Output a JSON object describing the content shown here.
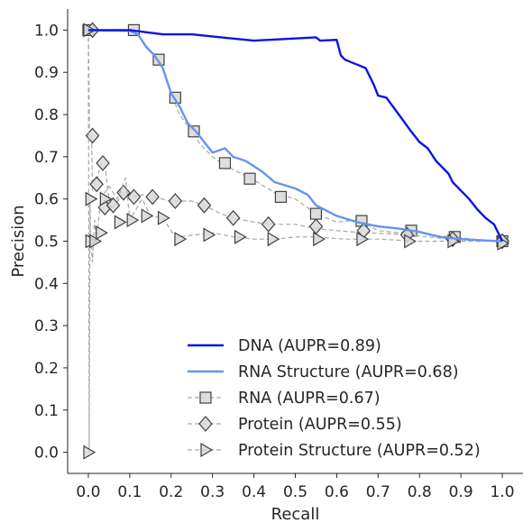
{
  "chart_data": {
    "type": "line",
    "title": "",
    "xlabel": "Recall",
    "ylabel": "Precision",
    "xlim": [
      -0.05,
      1.05
    ],
    "ylim": [
      -0.05,
      1.05
    ],
    "x_ticks": [
      "0.0",
      "0.1",
      "0.2",
      "0.3",
      "0.4",
      "0.5",
      "0.6",
      "0.7",
      "0.8",
      "0.9",
      "1.0"
    ],
    "y_ticks": [
      "0.0",
      "0.1",
      "0.2",
      "0.3",
      "0.4",
      "0.5",
      "0.6",
      "0.7",
      "0.8",
      "0.9",
      "1.0"
    ],
    "grid": false,
    "legend_position": "lower-right",
    "series": [
      {
        "name": "DNA (AUPR=0.89)",
        "color": "#0a14e6",
        "style": "solid",
        "marker": "none",
        "points": [
          [
            0.0,
            1.0
          ],
          [
            0.1,
            1.0
          ],
          [
            0.18,
            0.99
          ],
          [
            0.25,
            0.99
          ],
          [
            0.4,
            0.975
          ],
          [
            0.55,
            0.983
          ],
          [
            0.56,
            0.975
          ],
          [
            0.6,
            0.977
          ],
          [
            0.61,
            0.94
          ],
          [
            0.62,
            0.93
          ],
          [
            0.65,
            0.918
          ],
          [
            0.67,
            0.91
          ],
          [
            0.68,
            0.89
          ],
          [
            0.69,
            0.87
          ],
          [
            0.7,
            0.845
          ],
          [
            0.72,
            0.84
          ],
          [
            0.75,
            0.8
          ],
          [
            0.78,
            0.76
          ],
          [
            0.8,
            0.735
          ],
          [
            0.82,
            0.72
          ],
          [
            0.84,
            0.69
          ],
          [
            0.87,
            0.66
          ],
          [
            0.88,
            0.64
          ],
          [
            0.9,
            0.62
          ],
          [
            0.92,
            0.6
          ],
          [
            0.94,
            0.575
          ],
          [
            0.96,
            0.555
          ],
          [
            0.98,
            0.54
          ],
          [
            0.99,
            0.52
          ],
          [
            1.0,
            0.5
          ]
        ]
      },
      {
        "name": "RNA Structure (AUPR=0.68)",
        "color": "#6495ed",
        "style": "solid",
        "marker": "none",
        "points": [
          [
            0.0,
            1.0
          ],
          [
            0.1,
            0.998
          ],
          [
            0.12,
            0.99
          ],
          [
            0.14,
            0.96
          ],
          [
            0.16,
            0.94
          ],
          [
            0.18,
            0.91
          ],
          [
            0.19,
            0.88
          ],
          [
            0.2,
            0.85
          ],
          [
            0.22,
            0.82
          ],
          [
            0.24,
            0.78
          ],
          [
            0.26,
            0.76
          ],
          [
            0.28,
            0.735
          ],
          [
            0.3,
            0.71
          ],
          [
            0.33,
            0.72
          ],
          [
            0.35,
            0.7
          ],
          [
            0.38,
            0.69
          ],
          [
            0.42,
            0.665
          ],
          [
            0.45,
            0.64
          ],
          [
            0.5,
            0.625
          ],
          [
            0.53,
            0.61
          ],
          [
            0.55,
            0.585
          ],
          [
            0.6,
            0.56
          ],
          [
            0.65,
            0.545
          ],
          [
            0.7,
            0.535
          ],
          [
            0.75,
            0.53
          ],
          [
            0.8,
            0.522
          ],
          [
            0.85,
            0.51
          ],
          [
            0.9,
            0.505
          ],
          [
            0.95,
            0.502
          ],
          [
            1.0,
            0.5
          ]
        ]
      },
      {
        "name": "RNA (AUPR=0.67)",
        "color": "#a6a6a6",
        "style": "dashed",
        "marker": "square",
        "points": [
          [
            0.0,
            1.0
          ],
          [
            0.1,
            1.0
          ],
          [
            0.12,
            0.99
          ],
          [
            0.15,
            0.95
          ],
          [
            0.17,
            0.93
          ],
          [
            0.19,
            0.88
          ],
          [
            0.2,
            0.85
          ],
          [
            0.22,
            0.8
          ],
          [
            0.25,
            0.76
          ],
          [
            0.27,
            0.73
          ],
          [
            0.3,
            0.7
          ],
          [
            0.33,
            0.68
          ],
          [
            0.36,
            0.665
          ],
          [
            0.4,
            0.645
          ],
          [
            0.45,
            0.615
          ],
          [
            0.5,
            0.6
          ],
          [
            0.55,
            0.565
          ],
          [
            0.6,
            0.545
          ],
          [
            0.65,
            0.55
          ],
          [
            0.7,
            0.525
          ],
          [
            0.75,
            0.52
          ],
          [
            0.78,
            0.525
          ],
          [
            0.82,
            0.515
          ],
          [
            0.88,
            0.51
          ],
          [
            0.93,
            0.505
          ],
          [
            1.0,
            0.5
          ]
        ],
        "marked_points": [
          [
            0.0,
            1.0
          ],
          [
            0.11,
            1.0
          ],
          [
            0.17,
            0.93
          ],
          [
            0.21,
            0.84
          ],
          [
            0.255,
            0.76
          ],
          [
            0.33,
            0.685
          ],
          [
            0.39,
            0.648
          ],
          [
            0.465,
            0.605
          ],
          [
            0.55,
            0.565
          ],
          [
            0.66,
            0.548
          ],
          [
            0.78,
            0.525
          ],
          [
            0.885,
            0.51
          ],
          [
            1.0,
            0.5
          ]
        ]
      },
      {
        "name": "Protein (AUPR=0.55)",
        "color": "#a6a6a6",
        "style": "dashed",
        "marker": "diamond",
        "points": [
          [
            0.0,
            1.0
          ],
          [
            0.003,
            0.75
          ],
          [
            0.008,
            0.75
          ],
          [
            0.01,
            0.62
          ],
          [
            0.02,
            0.64
          ],
          [
            0.03,
            0.685
          ],
          [
            0.04,
            0.68
          ],
          [
            0.05,
            0.6
          ],
          [
            0.06,
            0.58
          ],
          [
            0.085,
            0.615
          ],
          [
            0.11,
            0.605
          ],
          [
            0.13,
            0.61
          ],
          [
            0.155,
            0.605
          ],
          [
            0.2,
            0.595
          ],
          [
            0.25,
            0.595
          ],
          [
            0.28,
            0.585
          ],
          [
            0.32,
            0.565
          ],
          [
            0.35,
            0.555
          ],
          [
            0.4,
            0.545
          ],
          [
            0.44,
            0.54
          ],
          [
            0.5,
            0.54
          ],
          [
            0.55,
            0.53
          ],
          [
            0.6,
            0.525
          ],
          [
            0.665,
            0.52
          ],
          [
            0.72,
            0.518
          ],
          [
            0.77,
            0.515
          ],
          [
            0.82,
            0.51
          ],
          [
            0.88,
            0.505
          ],
          [
            0.95,
            0.502
          ],
          [
            1.0,
            0.5
          ]
        ],
        "marked_points": [
          [
            0.01,
            1.0
          ],
          [
            0.01,
            0.75
          ],
          [
            0.02,
            0.635
          ],
          [
            0.035,
            0.685
          ],
          [
            0.04,
            0.58
          ],
          [
            0.06,
            0.585
          ],
          [
            0.085,
            0.615
          ],
          [
            0.11,
            0.605
          ],
          [
            0.155,
            0.605
          ],
          [
            0.21,
            0.595
          ],
          [
            0.28,
            0.585
          ],
          [
            0.35,
            0.555
          ],
          [
            0.435,
            0.54
          ],
          [
            0.55,
            0.535
          ],
          [
            0.665,
            0.525
          ],
          [
            0.77,
            0.515
          ],
          [
            0.88,
            0.505
          ],
          [
            1.0,
            0.5
          ]
        ]
      },
      {
        "name": "Protein Structure (AUPR=0.52)",
        "color": "#a6a6a6",
        "style": "dashed",
        "marker": "triangle-right",
        "points": [
          [
            0.0,
            1.0
          ],
          [
            0.002,
            0.0
          ],
          [
            0.004,
            0.6
          ],
          [
            0.006,
            0.5
          ],
          [
            0.01,
            0.45
          ],
          [
            0.015,
            0.55
          ],
          [
            0.02,
            0.5
          ],
          [
            0.03,
            0.6
          ],
          [
            0.05,
            0.63
          ],
          [
            0.07,
            0.6
          ],
          [
            0.09,
            0.65
          ],
          [
            0.1,
            0.55
          ],
          [
            0.13,
            0.6
          ],
          [
            0.15,
            0.56
          ],
          [
            0.18,
            0.555
          ],
          [
            0.21,
            0.51
          ],
          [
            0.26,
            0.515
          ],
          [
            0.3,
            0.52
          ],
          [
            0.35,
            0.51
          ],
          [
            0.4,
            0.505
          ],
          [
            0.45,
            0.505
          ],
          [
            0.5,
            0.51
          ],
          [
            0.55,
            0.51
          ],
          [
            0.62,
            0.505
          ],
          [
            0.7,
            0.505
          ],
          [
            0.8,
            0.5
          ],
          [
            0.9,
            0.5
          ],
          [
            1.0,
            0.5
          ]
        ],
        "marked_points": [
          [
            0.0,
            1.0
          ],
          [
            0.0,
            0.0
          ],
          [
            0.005,
            0.6
          ],
          [
            0.005,
            0.5
          ],
          [
            0.015,
            0.5
          ],
          [
            0.03,
            0.52
          ],
          [
            0.04,
            0.6
          ],
          [
            0.075,
            0.545
          ],
          [
            0.105,
            0.55
          ],
          [
            0.14,
            0.56
          ],
          [
            0.18,
            0.555
          ],
          [
            0.22,
            0.505
          ],
          [
            0.29,
            0.515
          ],
          [
            0.365,
            0.51
          ],
          [
            0.445,
            0.505
          ],
          [
            0.555,
            0.505
          ],
          [
            0.66,
            0.505
          ],
          [
            0.775,
            0.5
          ],
          [
            0.88,
            0.5
          ],
          [
            1.0,
            0.495
          ]
        ]
      }
    ]
  }
}
